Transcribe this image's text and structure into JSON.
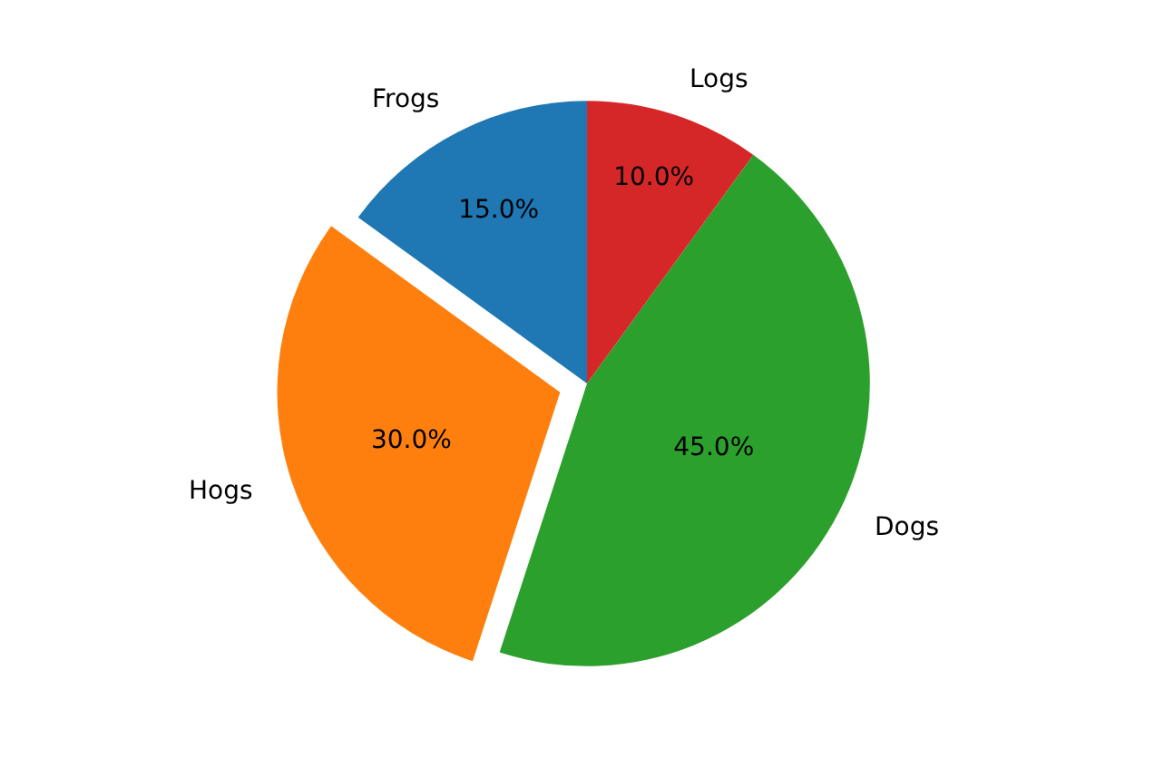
{
  "chart_data": {
    "type": "pie",
    "categories": [
      "Frogs",
      "Hogs",
      "Dogs",
      "Logs"
    ],
    "values": [
      15,
      30,
      45,
      10
    ],
    "colors": [
      "#1f77b4",
      "#ff7f0e",
      "#2ca02c",
      "#d62728"
    ],
    "value_labels": [
      "15.0%",
      "30.0%",
      "45.0%",
      "10.0%"
    ],
    "legend": false
  }
}
